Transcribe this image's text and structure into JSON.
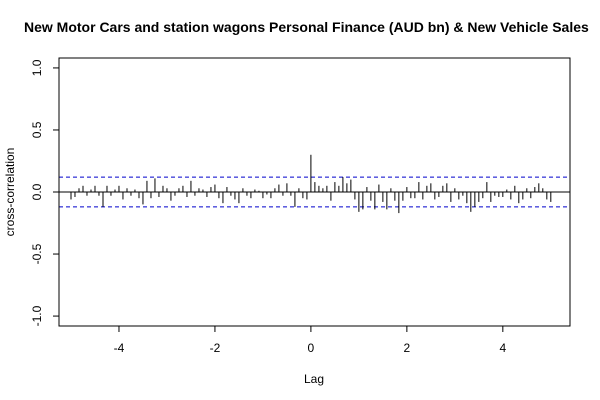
{
  "chart_data": {
    "type": "bar",
    "title": "New Motor Cars and station wagons Personal Finance (AUD bn) & New Vehicle Sales",
    "xlabel": "Lag",
    "ylabel": "cross-correlation",
    "xlim": [
      -5.25,
      5.4
    ],
    "ylim": [
      -1.08,
      1.08
    ],
    "x_ticks": [
      -4,
      -2,
      0,
      2,
      4
    ],
    "x_tick_labels": [
      "-4",
      "-2",
      "0",
      "2",
      "4"
    ],
    "y_ticks": [
      -1.0,
      -0.5,
      0.0,
      0.5,
      1.0
    ],
    "y_tick_labels": [
      "-1.0",
      "-0.5",
      "0.0",
      "0.5",
      "1.0"
    ],
    "confidence_bounds": [
      0.12,
      -0.12
    ],
    "colors": {
      "bars": "#000000",
      "zero_line": "#000000",
      "bounds": "#0000cc",
      "frame": "#000000"
    },
    "grid": false,
    "x": [
      -5.0,
      -4.917,
      -4.833,
      -4.75,
      -4.667,
      -4.583,
      -4.5,
      -4.417,
      -4.333,
      -4.25,
      -4.167,
      -4.083,
      -4.0,
      -3.917,
      -3.833,
      -3.75,
      -3.667,
      -3.583,
      -3.5,
      -3.417,
      -3.333,
      -3.25,
      -3.167,
      -3.083,
      -3.0,
      -2.917,
      -2.833,
      -2.75,
      -2.667,
      -2.583,
      -2.5,
      -2.417,
      -2.333,
      -2.25,
      -2.167,
      -2.083,
      -2.0,
      -1.917,
      -1.833,
      -1.75,
      -1.667,
      -1.583,
      -1.5,
      -1.417,
      -1.333,
      -1.25,
      -1.167,
      -1.083,
      -1.0,
      -0.917,
      -0.833,
      -0.75,
      -0.667,
      -0.583,
      -0.5,
      -0.417,
      -0.333,
      -0.25,
      -0.167,
      -0.083,
      0.0,
      0.083,
      0.167,
      0.25,
      0.333,
      0.417,
      0.5,
      0.583,
      0.667,
      0.75,
      0.833,
      0.917,
      1.0,
      1.083,
      1.167,
      1.25,
      1.333,
      1.417,
      1.5,
      1.583,
      1.667,
      1.75,
      1.833,
      1.917,
      2.0,
      2.083,
      2.167,
      2.25,
      2.333,
      2.417,
      2.5,
      2.583,
      2.667,
      2.75,
      2.833,
      2.917,
      3.0,
      3.083,
      3.167,
      3.25,
      3.333,
      3.417,
      3.5,
      3.583,
      3.667,
      3.75,
      3.833,
      3.917,
      4.0,
      4.083,
      4.167,
      4.25,
      4.333,
      4.417,
      4.5,
      4.583,
      4.667,
      4.75,
      4.833,
      4.917,
      5.0
    ],
    "values": [
      -0.06,
      -0.04,
      0.03,
      0.05,
      -0.03,
      0.02,
      0.05,
      -0.03,
      -0.12,
      0.05,
      -0.03,
      0.02,
      0.05,
      -0.06,
      0.03,
      -0.03,
      0.02,
      -0.05,
      -0.1,
      0.09,
      -0.05,
      0.11,
      -0.04,
      0.05,
      0.03,
      -0.07,
      -0.03,
      0.03,
      0.05,
      -0.04,
      0.09,
      -0.03,
      0.03,
      0.02,
      -0.04,
      0.04,
      0.06,
      -0.05,
      -0.09,
      0.04,
      -0.03,
      -0.06,
      -0.09,
      0.03,
      -0.03,
      -0.05,
      0.02,
      0.01,
      -0.05,
      -0.02,
      -0.05,
      0.03,
      0.06,
      -0.03,
      0.07,
      -0.03,
      -0.12,
      0.03,
      -0.05,
      -0.06,
      0.3,
      0.08,
      0.05,
      0.03,
      0.05,
      -0.07,
      0.08,
      0.05,
      0.12,
      0.07,
      0.1,
      -0.06,
      -0.16,
      -0.14,
      0.04,
      -0.07,
      -0.14,
      0.06,
      -0.08,
      -0.14,
      0.03,
      -0.07,
      -0.17,
      -0.07,
      0.04,
      -0.05,
      -0.05,
      0.08,
      -0.06,
      0.05,
      0.07,
      -0.06,
      -0.04,
      0.05,
      0.07,
      -0.08,
      0.03,
      -0.06,
      -0.03,
      -0.09,
      -0.16,
      -0.12,
      -0.08,
      -0.05,
      0.08,
      -0.08,
      -0.03,
      -0.04,
      -0.04,
      0.02,
      -0.06,
      0.05,
      -0.09,
      -0.06,
      0.03,
      -0.05,
      0.04,
      0.07,
      0.03,
      -0.06,
      -0.08
    ]
  }
}
